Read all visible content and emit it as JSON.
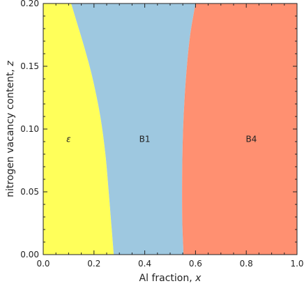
{
  "chart_data": {
    "type": "area",
    "title": "",
    "xlabel": "Al fraction, ",
    "xlabel_var": "x",
    "ylabel": "nitrogen vacancy content, ",
    "ylabel_var": "z",
    "xlim": [
      0,
      1.0
    ],
    "ylim": [
      0,
      0.2
    ],
    "xticks": [
      0.0,
      0.2,
      0.4,
      0.6,
      0.8,
      1.0
    ],
    "xtick_labels": [
      "0.0",
      "0.2",
      "0.4",
      "0.6",
      "0.8",
      "1.0"
    ],
    "yticks": [
      0.0,
      0.05,
      0.1,
      0.15,
      0.2
    ],
    "ytick_labels": [
      "0.00",
      "0.05",
      "0.10",
      "0.15",
      "0.20"
    ],
    "grid": false,
    "regions": [
      {
        "label": "ε",
        "color": "#ffff5a",
        "label_x": 0.1,
        "label_z": 0.092
      },
      {
        "label": "B1",
        "color": "#9ec8e0",
        "label_x": 0.4,
        "label_z": 0.092
      },
      {
        "label": "B4",
        "color": "#ff9071",
        "label_x": 0.82,
        "label_z": 0.092
      }
    ],
    "boundaries": [
      {
        "between": [
          "ε",
          "B1"
        ],
        "points": [
          [
            0.278,
            0.0
          ],
          [
            0.27,
            0.02
          ],
          [
            0.258,
            0.05
          ],
          [
            0.245,
            0.08
          ],
          [
            0.225,
            0.11
          ],
          [
            0.195,
            0.14
          ],
          [
            0.165,
            0.163
          ],
          [
            0.14,
            0.18
          ],
          [
            0.11,
            0.2
          ]
        ]
      },
      {
        "between": [
          "B1",
          "B4"
        ],
        "points": [
          [
            0.553,
            0.0
          ],
          [
            0.548,
            0.025
          ],
          [
            0.547,
            0.05
          ],
          [
            0.548,
            0.075
          ],
          [
            0.551,
            0.1
          ],
          [
            0.557,
            0.125
          ],
          [
            0.566,
            0.15
          ],
          [
            0.579,
            0.175
          ],
          [
            0.6,
            0.2
          ]
        ]
      }
    ]
  }
}
